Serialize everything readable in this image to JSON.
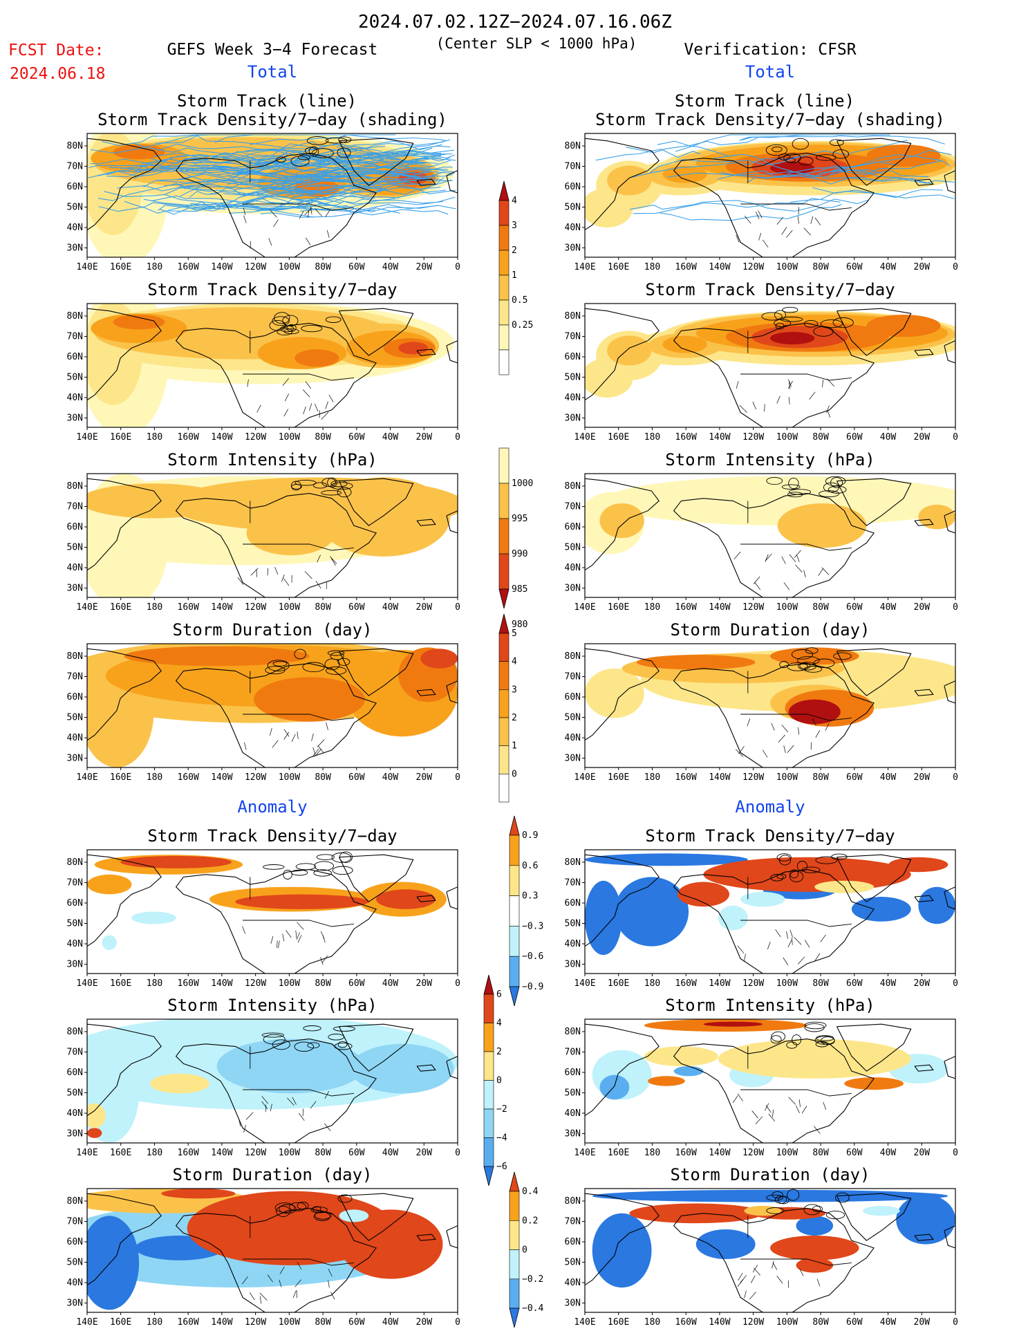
{
  "header": {
    "title": "2024.07.02.12Z−2024.07.16.06Z",
    "fcst_label": "FCST Date:",
    "fcst_date": "2024.06.18",
    "left_title": "GEFS Week 3−4 Forecast",
    "subtitle": "(Center SLP < 1000 hPa)",
    "right_title": "Verification: CFSR"
  },
  "sections": {
    "total": "Total",
    "anomaly": "Anomaly"
  },
  "axes": {
    "lon_ticks": [
      "140E",
      "160E",
      "180",
      "160W",
      "140W",
      "120W",
      "100W",
      "80W",
      "60W",
      "40W",
      "20W",
      "0"
    ],
    "lat_ticks": [
      "80N",
      "70N",
      "60N",
      "50N",
      "40N",
      "30N"
    ]
  },
  "panel_titles": {
    "track_line": "Storm Track (line)",
    "track_shading": "Storm Track Density/7−day (shading)",
    "density": "Storm Track Density/7−day",
    "intensity": "Storm Intensity (hPa)",
    "duration": "Storm Duration (day)"
  },
  "colorbars": {
    "density_total": [
      "4",
      "3",
      "2",
      "1",
      "0.5",
      "0.25"
    ],
    "intensity_total": [
      "1000",
      "995",
      "990",
      "985",
      "980"
    ],
    "duration_total": [
      "5",
      "4",
      "3",
      "2",
      "1",
      "0"
    ],
    "density_anom": [
      "0.9",
      "0.6",
      "0.3",
      "−0.3",
      "−0.6",
      "−0.9"
    ],
    "intensity_anom": [
      "6",
      "4",
      "2",
      "0",
      "−2",
      "−4",
      "−6"
    ],
    "duration_anom": [
      "0.4",
      "0.2",
      "0",
      "−0.2",
      "−0.4"
    ]
  },
  "colors": {
    "pos": [
      "#fff7b8",
      "#fde68a",
      "#fbc24a",
      "#f8a21c",
      "#f07a10",
      "#e0471a",
      "#b01010"
    ],
    "neg": [
      "#bff2fb",
      "#8fd6f5",
      "#5aaef0",
      "#2a78e0",
      "#1f5fd4"
    ],
    "track": "#3aa0e8"
  }
}
